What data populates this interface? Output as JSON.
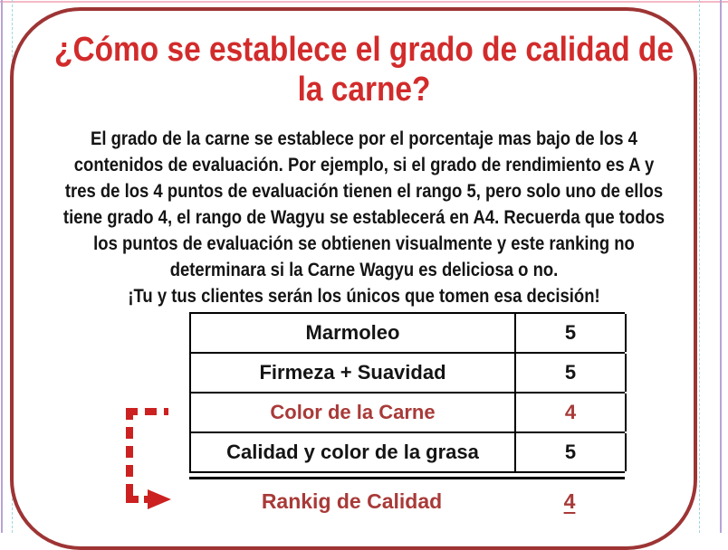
{
  "slide": {
    "title": "¿Cómo se establece el grado de calidad de\nla carne?",
    "paragraph": "El grado de la carne se establece por el porcentaje mas bajo de los 4\ncontenidos de evaluación. Por ejemplo, si el grado de rendimiento es A y\ntres de los 4 puntos de evaluación tienen el rango 5, pero solo uno de ellos\ntiene grado 4, el rango de Wagyu se establecerá en A4. Recuerda que todos\nlos puntos de evaluación se obtienen visualmente y este ranking no\ndeterminara si la Carne Wagyu es deliciosa o no.\n¡Tu y tus clientes serán los únicos que tomen esa decisión!"
  },
  "table": {
    "rows": [
      {
        "label": "Marmoleo",
        "value": "5"
      },
      {
        "label": "Firmeza + Suavidad",
        "value": "5"
      },
      {
        "label": "Color de la Carne",
        "value": "4"
      },
      {
        "label": "Calidad y color de la grasa",
        "value": "5"
      }
    ],
    "summary": {
      "label": "Rankig de Calidad",
      "value": "4"
    }
  },
  "icons": {
    "arrow": "dashed-elbow-arrow-right"
  },
  "colors": {
    "title-red": "#d22b2b",
    "border-red": "#9e3434",
    "table-red": "#a83a38",
    "arrow-red": "#cc2121",
    "text-black": "#141414",
    "guide-pink": "#f4b8c6",
    "guide-purple": "#b7a4d6",
    "guide-cyan": "#9fd8dc"
  }
}
